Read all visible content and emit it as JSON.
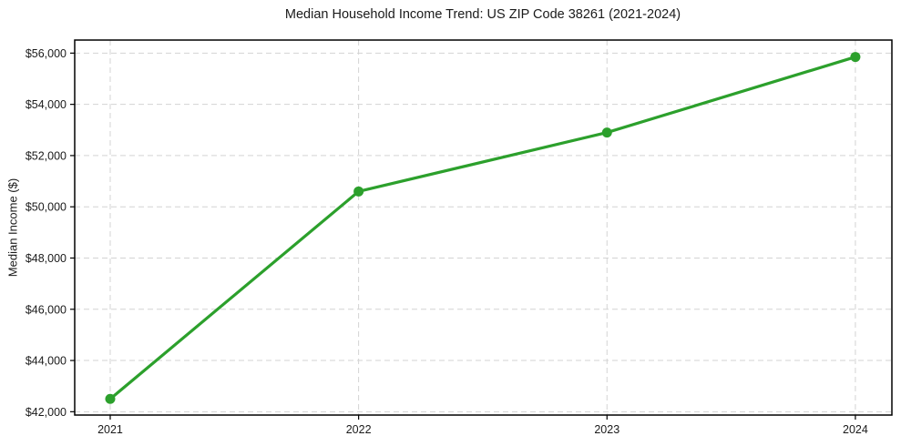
{
  "chart_data": {
    "type": "line",
    "title": "Median Household Income Trend: US ZIP Code 38261 (2021-2024)",
    "xlabel": "",
    "ylabel": "Median Income ($)",
    "x": [
      2021,
      2022,
      2023,
      2024
    ],
    "x_tick_labels": [
      "2021",
      "2022",
      "2023",
      "2024"
    ],
    "series": [
      {
        "name": "Median Household Income",
        "values": [
          42500,
          50600,
          52900,
          55850
        ]
      }
    ],
    "y_ticks": [
      42000,
      44000,
      46000,
      48000,
      50000,
      52000,
      54000,
      56000
    ],
    "y_tick_labels": [
      "$42,000",
      "$44,000",
      "$46,000",
      "$48,000",
      "$50,000",
      "$52,000",
      "$54,000",
      "$56,000"
    ],
    "xlim": [
      2020.857,
      2024.147
    ],
    "ylim": [
      41870,
      56510
    ],
    "grid": true,
    "grid_style": "dashed",
    "legend": "none",
    "colors": {
      "line": "#2ca02c",
      "marker": "#2ca02c",
      "grid": "#d3d3d3",
      "spine": "#000000",
      "text": "#1a1a1a",
      "background": "#ffffff"
    }
  }
}
